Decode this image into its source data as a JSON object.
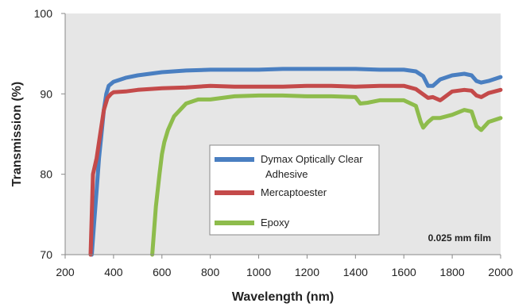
{
  "chart_data": {
    "type": "line",
    "xlabel": "Wavelength (nm)",
    "ylabel": "Transmission (%)",
    "xlim": [
      200,
      2000
    ],
    "ylim": [
      70,
      100
    ],
    "x_ticks": [
      "200",
      "400",
      "600",
      "800",
      "1000",
      "1200",
      "1400",
      "1600",
      "1800",
      "2000"
    ],
    "y_ticks": [
      "70",
      "80",
      "90",
      "100"
    ],
    "grid": false,
    "legend_position": "center",
    "annotation": "0.025 mm film",
    "plot_background": "#e6e6e6",
    "series": [
      {
        "name": "Dymax Optically Clear Adhesive",
        "name_lines": [
          "Dymax Optically Clear",
          "Adhesive"
        ],
        "color": "#4a7fc1",
        "x": [
          310,
          320,
          330,
          340,
          350,
          360,
          370,
          380,
          400,
          450,
          500,
          550,
          600,
          700,
          800,
          900,
          1000,
          1100,
          1200,
          1300,
          1400,
          1500,
          1600,
          1650,
          1680,
          1700,
          1720,
          1750,
          1800,
          1850,
          1880,
          1900,
          1920,
          1950,
          2000
        ],
        "y": [
          70,
          74,
          78,
          82,
          85,
          88,
          90,
          91,
          91.5,
          92,
          92.3,
          92.5,
          92.7,
          92.9,
          93,
          93,
          93,
          93.1,
          93.1,
          93.1,
          93.1,
          93,
          93,
          92.8,
          92.2,
          91,
          91,
          91.8,
          92.3,
          92.5,
          92.3,
          91.6,
          91.4,
          91.6,
          92.1
        ]
      },
      {
        "name": "Mercaptoester",
        "name_lines": [
          "Mercaptoester"
        ],
        "color": "#c44a4a",
        "x": [
          305,
          315,
          330,
          345,
          360,
          375,
          390,
          400,
          450,
          500,
          550,
          600,
          700,
          800,
          900,
          1000,
          1100,
          1200,
          1300,
          1400,
          1500,
          1600,
          1650,
          1700,
          1720,
          1750,
          1760,
          1800,
          1850,
          1880,
          1900,
          1920,
          1950,
          2000
        ],
        "y": [
          70,
          80,
          82,
          85,
          88,
          89.5,
          90,
          90.2,
          90.3,
          90.5,
          90.6,
          90.7,
          90.8,
          91,
          90.9,
          90.9,
          90.9,
          91,
          91,
          90.9,
          91,
          91,
          90.6,
          89.5,
          89.6,
          89.2,
          89.4,
          90.3,
          90.5,
          90.4,
          89.8,
          89.6,
          90.1,
          90.5
        ]
      },
      {
        "name": "Epoxy",
        "name_lines": [
          "Epoxy"
        ],
        "color": "#8ebc4c",
        "x": [
          560,
          575,
          590,
          600,
          610,
          625,
          650,
          700,
          750,
          800,
          900,
          1000,
          1100,
          1200,
          1300,
          1400,
          1420,
          1450,
          1500,
          1600,
          1650,
          1670,
          1680,
          1700,
          1720,
          1750,
          1800,
          1850,
          1880,
          1900,
          1920,
          1950,
          2000
        ],
        "y": [
          70,
          76,
          80,
          82.5,
          84,
          85.5,
          87.2,
          88.8,
          89.3,
          89.3,
          89.7,
          89.8,
          89.8,
          89.7,
          89.7,
          89.6,
          88.8,
          88.9,
          89.2,
          89.2,
          88.5,
          86.5,
          85.8,
          86.5,
          87,
          87,
          87.4,
          88,
          87.8,
          86,
          85.5,
          86.5,
          87
        ]
      }
    ]
  }
}
